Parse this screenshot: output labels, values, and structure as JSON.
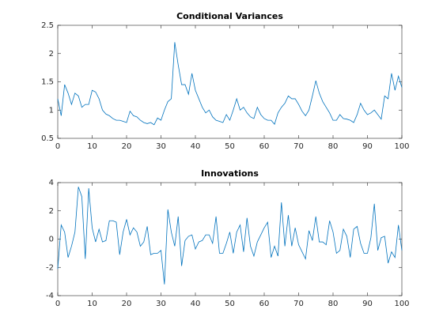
{
  "chart_data": [
    {
      "type": "line",
      "title": "Conditional Variances",
      "color": "#0072BD",
      "x": [
        0,
        1,
        2,
        3,
        4,
        5,
        6,
        7,
        8,
        9,
        10,
        11,
        12,
        13,
        14,
        15,
        16,
        17,
        18,
        19,
        20,
        21,
        22,
        23,
        24,
        25,
        26,
        27,
        28,
        29,
        30,
        31,
        32,
        33,
        34,
        35,
        36,
        37,
        38,
        39,
        40,
        41,
        42,
        43,
        44,
        45,
        46,
        47,
        48,
        49,
        50,
        51,
        52,
        53,
        54,
        55,
        56,
        57,
        58,
        59,
        60,
        61,
        62,
        63,
        64,
        65,
        66,
        67,
        68,
        69,
        70,
        71,
        72,
        73,
        74,
        75,
        76,
        77,
        78,
        79,
        80,
        81,
        82,
        83,
        84,
        85,
        86,
        87,
        88,
        89,
        90,
        91,
        92,
        93,
        94,
        95,
        96,
        97,
        98,
        99,
        100
      ],
      "values": [
        1.2,
        0.9,
        1.45,
        1.3,
        1.1,
        1.3,
        1.25,
        1.05,
        1.1,
        1.1,
        1.35,
        1.32,
        1.2,
        1.0,
        0.93,
        0.9,
        0.85,
        0.82,
        0.82,
        0.8,
        0.78,
        0.98,
        0.9,
        0.88,
        0.82,
        0.78,
        0.76,
        0.78,
        0.74,
        0.86,
        0.82,
        1.0,
        1.15,
        1.2,
        2.2,
        1.8,
        1.45,
        1.45,
        1.28,
        1.65,
        1.35,
        1.2,
        1.05,
        0.95,
        1.0,
        0.88,
        0.82,
        0.8,
        0.78,
        0.92,
        0.82,
        1.0,
        1.2,
        1.0,
        1.05,
        0.95,
        0.88,
        0.85,
        1.05,
        0.92,
        0.85,
        0.82,
        0.82,
        0.75,
        0.95,
        1.05,
        1.12,
        1.25,
        1.2,
        1.2,
        1.1,
        0.98,
        0.9,
        1.0,
        1.25,
        1.52,
        1.3,
        1.15,
        1.05,
        0.95,
        0.82,
        0.82,
        0.92,
        0.85,
        0.84,
        0.82,
        0.78,
        0.92,
        1.12,
        1.0,
        0.92,
        0.95,
        1.0,
        0.92,
        0.84,
        1.25,
        1.2,
        1.65,
        1.35,
        1.6,
        1.4
      ],
      "xlim": [
        0,
        100
      ],
      "xticks": [
        0,
        10,
        20,
        30,
        40,
        50,
        60,
        70,
        80,
        90,
        100
      ],
      "ylim": [
        0.5,
        2.5
      ],
      "yticks": [
        0.5,
        1,
        1.5,
        2,
        2.5
      ],
      "grid": false
    },
    {
      "type": "line",
      "title": "Innovations",
      "color": "#0072BD",
      "x": [
        0,
        1,
        2,
        3,
        4,
        5,
        6,
        7,
        8,
        9,
        10,
        11,
        12,
        13,
        14,
        15,
        16,
        17,
        18,
        19,
        20,
        21,
        22,
        23,
        24,
        25,
        26,
        27,
        28,
        29,
        30,
        31,
        32,
        33,
        34,
        35,
        36,
        37,
        38,
        39,
        40,
        41,
        42,
        43,
        44,
        45,
        46,
        47,
        48,
        49,
        50,
        51,
        52,
        53,
        54,
        55,
        56,
        57,
        58,
        59,
        60,
        61,
        62,
        63,
        64,
        65,
        66,
        67,
        68,
        69,
        70,
        71,
        72,
        73,
        74,
        75,
        76,
        77,
        78,
        79,
        80,
        81,
        82,
        83,
        84,
        85,
        86,
        87,
        88,
        89,
        90,
        91,
        92,
        93,
        94,
        95,
        96,
        97,
        98,
        99,
        100
      ],
      "values": [
        -2.1,
        1.0,
        0.5,
        -1.3,
        -0.5,
        0.5,
        3.7,
        3.0,
        -1.4,
        3.6,
        0.8,
        -0.2,
        0.7,
        -0.2,
        -0.1,
        1.3,
        1.3,
        1.2,
        -1.1,
        0.5,
        1.4,
        0.3,
        0.8,
        0.5,
        -0.5,
        -0.2,
        0.9,
        -1.1,
        -1.0,
        -1.0,
        -0.8,
        -3.2,
        2.1,
        0.5,
        -0.5,
        1.6,
        -1.9,
        -0.1,
        0.2,
        0.3,
        -0.7,
        -0.2,
        -0.1,
        0.3,
        0.3,
        -0.3,
        1.6,
        -1.0,
        -1.0,
        -0.3,
        0.5,
        -1.0,
        0.5,
        1.0,
        -0.9,
        1.5,
        -0.5,
        -1.2,
        -0.2,
        0.3,
        0.8,
        1.2,
        -1.3,
        -0.5,
        -1.2,
        2.6,
        -0.5,
        1.7,
        -0.5,
        0.8,
        -0.4,
        -0.9,
        -1.4,
        0.6,
        -0.1,
        1.6,
        -0.2,
        -0.2,
        -0.4,
        1.3,
        0.5,
        -1.0,
        -0.8,
        0.7,
        0.2,
        -1.3,
        0.7,
        0.9,
        -0.3,
        -1.0,
        -1.0,
        0.1,
        2.5,
        -0.8,
        0.1,
        0.2,
        -1.7,
        -0.9,
        -1.3,
        1.0,
        -0.8
      ],
      "xlim": [
        0,
        100
      ],
      "xticks": [
        0,
        10,
        20,
        30,
        40,
        50,
        60,
        70,
        80,
        90,
        100
      ],
      "ylim": [
        -4,
        4
      ],
      "yticks": [
        -4,
        -2,
        0,
        2,
        4
      ],
      "grid": false
    }
  ]
}
